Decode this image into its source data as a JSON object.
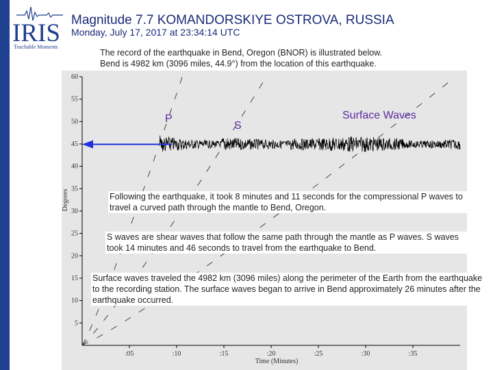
{
  "header": {
    "logo_text": "IRIS",
    "logo_tagline": "Teachable Moments",
    "title": "Magnitude 7.7 KOMANDORSKIYE OSTROVA, RUSSIA",
    "subtitle": "Monday,  July 17, 2017 at 23:34:14 UTC"
  },
  "intro": {
    "line1": "The record of the earthquake in Bend, Oregon (BNOR) is illustrated below.",
    "line2": "Bend is 4982 km (3096 miles, 44.9°) from the location of this earthquake."
  },
  "chart_data": {
    "type": "line",
    "ylabel": "Degrees",
    "xlabel": "Time  (Minutes)",
    "y_ticks": [
      "60",
      "55",
      "50",
      "45",
      "40",
      "35",
      "30",
      "25",
      "20",
      "15",
      "10",
      "5"
    ],
    "x_ticks": [
      ":05",
      ":10",
      ":15",
      ":20",
      ":25",
      ":30",
      ":35"
    ],
    "ylim": [
      0,
      60
    ],
    "xlim": [
      0,
      40
    ],
    "station_distance_deg": 44.9,
    "phase_labels": {
      "p": "P",
      "s": "S",
      "surface": "Surface Waves"
    },
    "arrivals_min": {
      "p": 8.18,
      "s": 14.77,
      "surface": 26
    },
    "colors": {
      "arrow": "#2233dd",
      "label": "#5a2aa0",
      "trace": "#000000"
    }
  },
  "annotations": {
    "p_text": "Following the earthquake, it took 8 minutes and 11 seconds for the compressional P waves to travel a curved path through the mantle to Bend, Oregon.",
    "s_text": "S waves are shear waves that follow the same path through the mantle as P waves. S waves took 14 minutes and 46 seconds to travel from the earthquake to Bend.",
    "surface_text": "Surface waves traveled the 4982 km (3096 miles) along the perimeter of the Earth from the earthquake to the recording station. The surface waves began to arrive in Bend approximately 26 minutes after the earthquake occurred."
  }
}
